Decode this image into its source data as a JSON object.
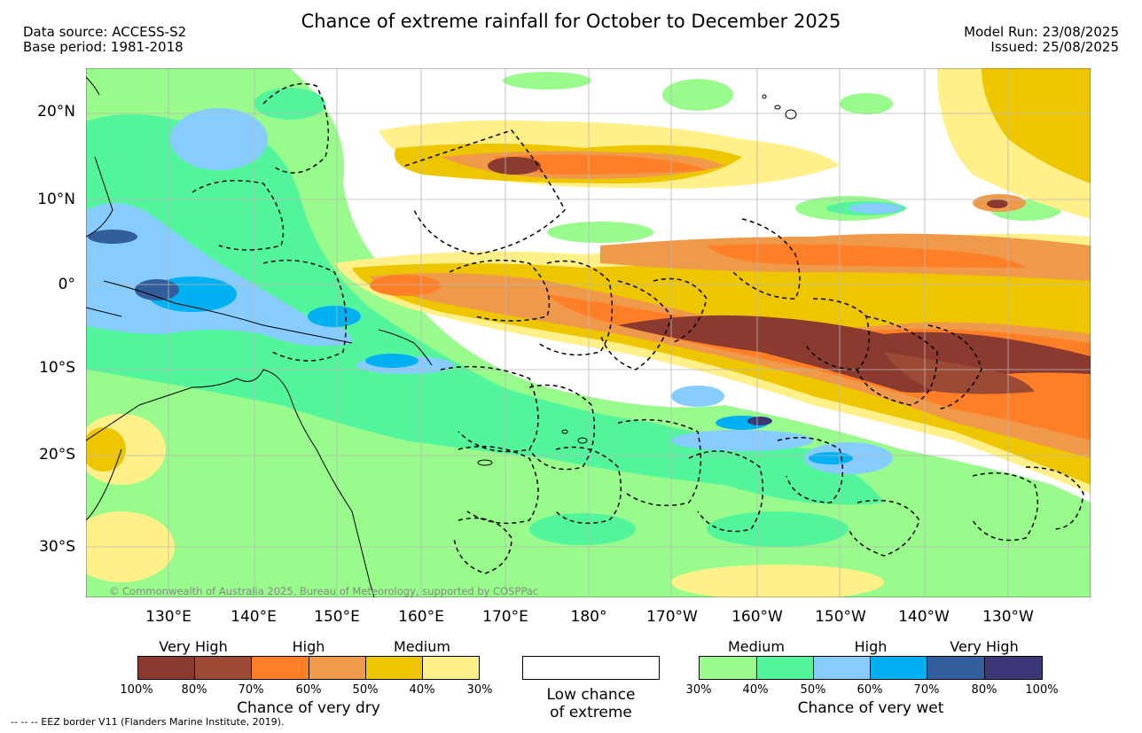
{
  "header": {
    "title": "Chance of extreme rainfall for October to December 2025",
    "data_source": "Data source: ACCESS-S2",
    "base_period": "Base period: 1981-2018",
    "model_run": "Model Run: 23/08/2025",
    "issued": "Issued: 25/08/2025"
  },
  "map": {
    "lat_labels": [
      "20°N",
      "10°N",
      "0°",
      "10°S",
      "20°S",
      "30°S"
    ],
    "lon_labels": [
      "130°E",
      "140°E",
      "150°E",
      "160°E",
      "170°E",
      "180°",
      "170°W",
      "160°W",
      "150°W",
      "140°W",
      "130°W"
    ],
    "copyright": "© Commonwealth of Australia 2025, Bureau of Meteorology, supported by COSPPac"
  },
  "legend": {
    "dry": {
      "headers": [
        "Very High",
        "High",
        "Medium"
      ],
      "ticks": [
        "100%",
        "80%",
        "70%",
        "60%",
        "50%",
        "40%",
        "30%"
      ],
      "colors": [
        "#8b3a30",
        "#9b4a36",
        "#ff7f27",
        "#ef9a4a",
        "#eec600",
        "#fff08a"
      ],
      "caption": "Chance of very dry"
    },
    "low": {
      "line1": "Low chance",
      "line2": "of extreme",
      "color": "#ffffff"
    },
    "wet": {
      "headers": [
        "Medium",
        "High",
        "Very High"
      ],
      "ticks": [
        "30%",
        "40%",
        "50%",
        "60%",
        "70%",
        "80%",
        "100%"
      ],
      "colors": [
        "#98fb8c",
        "#52f59c",
        "#86ccff",
        "#00b0f0",
        "#325e9c",
        "#3c3877"
      ],
      "caption": "Chance of very wet"
    }
  },
  "footer": {
    "eez": "--  --  -- EEZ border V11 (Flanders Marine Institute, 2019)."
  }
}
